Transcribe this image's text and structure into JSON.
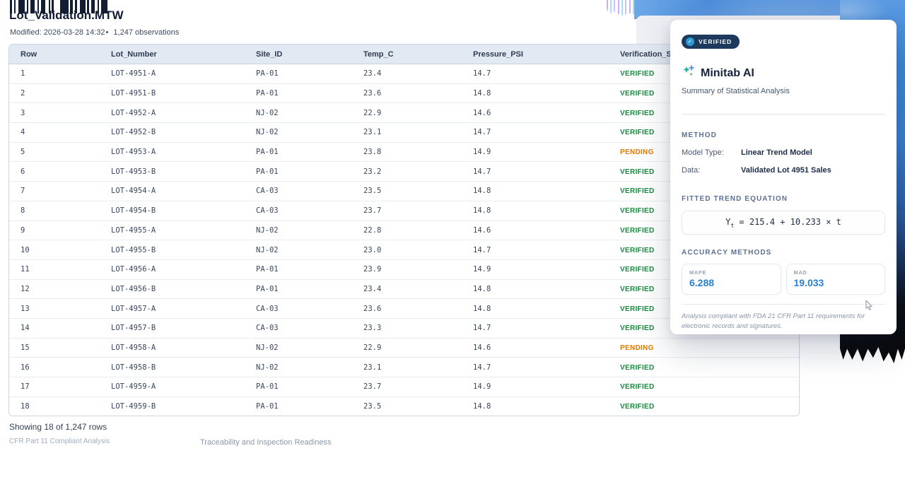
{
  "header": {
    "title": "Lot_Validation.MTW",
    "modified": "Modified: 2026-03-28 14:32",
    "separator": "•",
    "observations": "1,247 observations"
  },
  "table": {
    "columns": [
      "Row",
      "Lot_Number",
      "Site_ID",
      "Temp_C",
      "Pressure_PSI",
      "Verification_Status"
    ],
    "rows": [
      {
        "row": "1",
        "lot": "LOT-4951-A",
        "site": "PA-01",
        "temp": "23.4",
        "pressure": "14.7",
        "status": "VERIFIED"
      },
      {
        "row": "2",
        "lot": "LOT-4951-B",
        "site": "PA-01",
        "temp": "23.6",
        "pressure": "14.8",
        "status": "VERIFIED"
      },
      {
        "row": "3",
        "lot": "LOT-4952-A",
        "site": "NJ-02",
        "temp": "22.9",
        "pressure": "14.6",
        "status": "VERIFIED"
      },
      {
        "row": "4",
        "lot": "LOT-4952-B",
        "site": "NJ-02",
        "temp": "23.1",
        "pressure": "14.7",
        "status": "VERIFIED"
      },
      {
        "row": "5",
        "lot": "LOT-4953-A",
        "site": "PA-01",
        "temp": "23.8",
        "pressure": "14.9",
        "status": "PENDING"
      },
      {
        "row": "6",
        "lot": "LOT-4953-B",
        "site": "PA-01",
        "temp": "23.2",
        "pressure": "14.7",
        "status": "VERIFIED"
      },
      {
        "row": "7",
        "lot": "LOT-4954-A",
        "site": "CA-03",
        "temp": "23.5",
        "pressure": "14.8",
        "status": "VERIFIED"
      },
      {
        "row": "8",
        "lot": "LOT-4954-B",
        "site": "CA-03",
        "temp": "23.7",
        "pressure": "14.8",
        "status": "VERIFIED"
      },
      {
        "row": "9",
        "lot": "LOT-4955-A",
        "site": "NJ-02",
        "temp": "22.8",
        "pressure": "14.6",
        "status": "VERIFIED"
      },
      {
        "row": "10",
        "lot": "LOT-4955-B",
        "site": "NJ-02",
        "temp": "23.0",
        "pressure": "14.7",
        "status": "VERIFIED"
      },
      {
        "row": "11",
        "lot": "LOT-4956-A",
        "site": "PA-01",
        "temp": "23.9",
        "pressure": "14.9",
        "status": "VERIFIED"
      },
      {
        "row": "12",
        "lot": "LOT-4956-B",
        "site": "PA-01",
        "temp": "23.4",
        "pressure": "14.8",
        "status": "VERIFIED"
      },
      {
        "row": "13",
        "lot": "LOT-4957-A",
        "site": "CA-03",
        "temp": "23.6",
        "pressure": "14.8",
        "status": "VERIFIED"
      },
      {
        "row": "14",
        "lot": "LOT-4957-B",
        "site": "CA-03",
        "temp": "23.3",
        "pressure": "14.7",
        "status": "VERIFIED"
      },
      {
        "row": "15",
        "lot": "LOT-4958-A",
        "site": "NJ-02",
        "temp": "22.9",
        "pressure": "14.6",
        "status": "PENDING"
      },
      {
        "row": "16",
        "lot": "LOT-4958-B",
        "site": "NJ-02",
        "temp": "23.1",
        "pressure": "14.7",
        "status": "VERIFIED"
      },
      {
        "row": "17",
        "lot": "LOT-4959-A",
        "site": "PA-01",
        "temp": "23.7",
        "pressure": "14.9",
        "status": "VERIFIED"
      },
      {
        "row": "18",
        "lot": "LOT-4959-B",
        "site": "PA-01",
        "temp": "23.5",
        "pressure": "14.8",
        "status": "VERIFIED"
      }
    ]
  },
  "footer": {
    "showing": "Showing 18 of 1,247 rows",
    "compliance": "CFR Part 11 Compliant Analysis",
    "traceability": "Traceability and Inspection Readiness"
  },
  "panel": {
    "badge": "VERIFIED",
    "badge_check": "✓",
    "title": "Minitab AI",
    "subtitle": "Summary of Statistical Analysis",
    "method_heading": "METHOD",
    "model_type_label": "Model Type:",
    "model_type_value": "Linear Trend Model",
    "data_label": "Data:",
    "data_value": "Validated Lot 4951 Sales",
    "equation_heading": "FITTED TREND EQUATION",
    "equation": {
      "lhs": "Y",
      "sub": "t",
      "rhs": " = 215.4 + 10.233 × t"
    },
    "accuracy_heading": "ACCURACY METHODS",
    "metrics": [
      {
        "label": "MAPE",
        "value": "6.288"
      },
      {
        "label": "MAD",
        "value": "19.033"
      }
    ],
    "footnote": "Analysis compliant with FDA 21 CFR Part 11 requirements for electronic records and signatures."
  },
  "colors": {
    "status_verified": "#168a3f",
    "status_pending": "#e07b00",
    "metric_value": "#2a7fd4",
    "badge_bg": "#1d3a5c",
    "badge_check_bg": "#2b9bd7",
    "header_row_bg": "#e3e9f2",
    "artwork_blue": "#4a8cd9"
  },
  "decor": {
    "barcode_pattern": [
      3,
      3,
      2,
      4,
      9,
      3,
      2,
      3,
      6,
      4,
      2,
      3,
      6,
      5,
      2,
      2,
      3,
      9,
      12,
      2,
      4,
      3,
      3,
      4,
      8,
      2,
      3,
      3,
      5,
      4,
      2,
      3,
      9
    ]
  }
}
